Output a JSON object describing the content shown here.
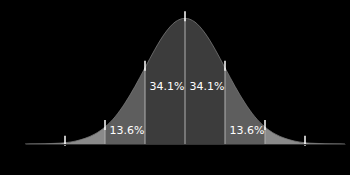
{
  "chart_data": {
    "type": "area",
    "x": [
      -4,
      -3.75,
      -3.5,
      -3.25,
      -3,
      -2.75,
      -2.5,
      -2.25,
      -2,
      -1.75,
      -1.5,
      -1.25,
      -1,
      -0.75,
      -0.5,
      -0.25,
      0,
      0.25,
      0.5,
      0.75,
      1,
      1.25,
      1.5,
      1.75,
      2,
      2.25,
      2.5,
      2.75,
      3,
      3.25,
      3.5,
      3.75,
      4
    ],
    "values": [
      0.0001,
      0.0004,
      0.001,
      0.002,
      0.004,
      0.009,
      0.018,
      0.032,
      0.054,
      0.086,
      0.13,
      0.183,
      0.242,
      0.301,
      0.352,
      0.387,
      0.399,
      0.387,
      0.352,
      0.301,
      0.242,
      0.183,
      0.13,
      0.086,
      0.054,
      0.032,
      0.018,
      0.009,
      0.004,
      0.002,
      0.001,
      0.0004,
      0.0001
    ],
    "xlim": [
      -4,
      4
    ],
    "ylim": [
      0,
      0.4
    ],
    "xticks": [
      -3,
      -2,
      -1,
      0,
      1,
      2,
      3
    ],
    "tick_labels": false,
    "grid": false,
    "bands": {
      "edges": [
        -4,
        -3,
        -2,
        -1,
        0,
        1,
        2,
        3,
        4
      ],
      "colors": [
        "#a2a2a2",
        "#8a8a8a",
        "#5e5e5e",
        "#3c3c3c",
        "#3c3c3c",
        "#5e5e5e",
        "#8a8a8a",
        "#a2a2a2"
      ],
      "values": [
        null,
        null,
        13.6,
        34.1,
        34.1,
        13.6,
        null,
        null
      ],
      "value_labels": [
        null,
        null,
        "13.6%",
        "34.1%",
        "34.1%",
        "13.6%",
        null,
        null
      ]
    },
    "data_labels": true
  }
}
